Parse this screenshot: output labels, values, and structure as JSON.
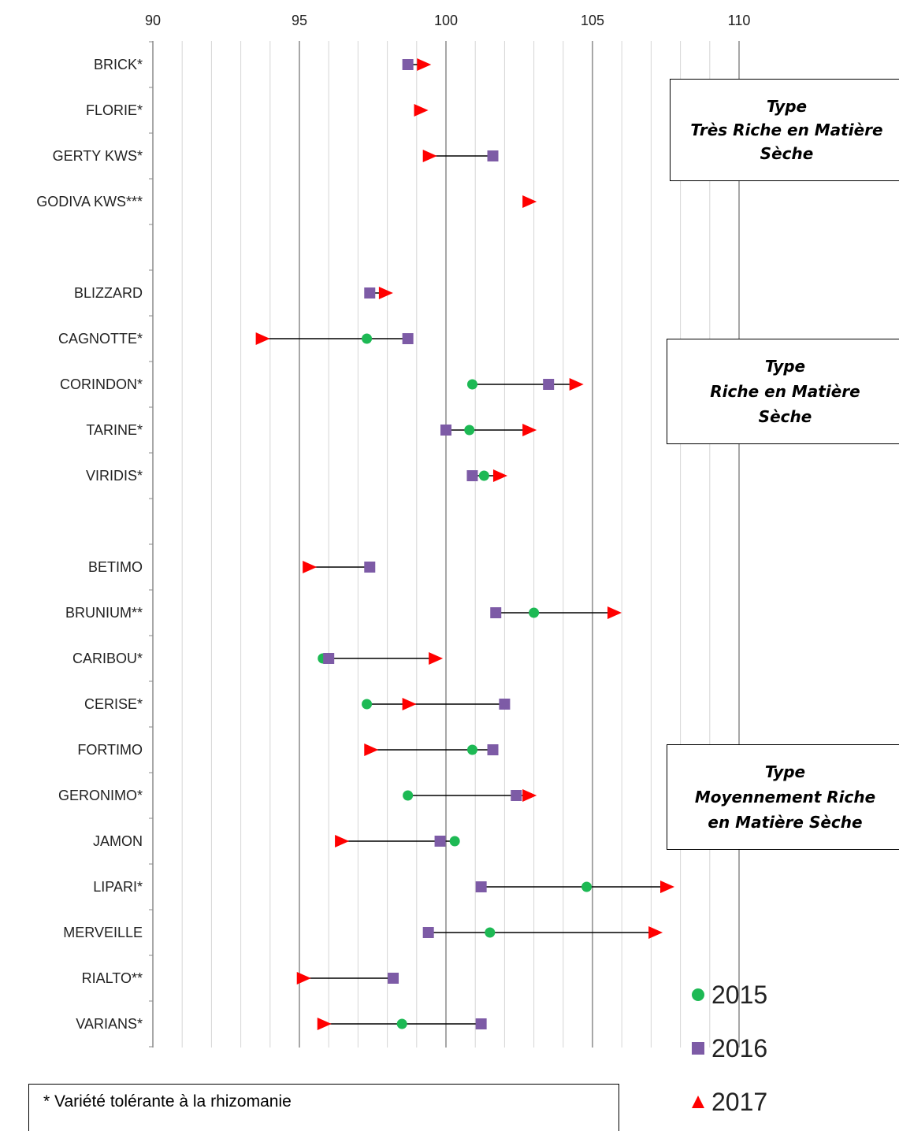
{
  "chart_data": {
    "type": "scatter",
    "xlim": [
      90,
      110
    ],
    "x_ticks": [
      90,
      95,
      100,
      105,
      110
    ],
    "grid": true,
    "legend_position": "bottom-right",
    "series_colors": {
      "2015": "#1db954",
      "2016": "#7d5ba6",
      "2017": "#ff0000"
    },
    "series_markers": {
      "2015": "circle",
      "2016": "square",
      "2017": "triangle"
    },
    "legend": [
      "2015",
      "2016",
      "2017"
    ],
    "categories": [
      {
        "name": "BRICK*",
        "v2015": null,
        "v2016": 98.7,
        "v2017": 99.2
      },
      {
        "name": "FLORIE*",
        "v2015": null,
        "v2016": null,
        "v2017": 99.1
      },
      {
        "name": "GERTY KWS*",
        "v2015": null,
        "v2016": 101.6,
        "v2017": 99.4
      },
      {
        "name": "GODIVA KWS***",
        "v2015": null,
        "v2016": null,
        "v2017": 102.8
      },
      {
        "name": "",
        "v2015": null,
        "v2016": null,
        "v2017": null
      },
      {
        "name": "BLIZZARD",
        "v2015": null,
        "v2016": 97.4,
        "v2017": 97.9
      },
      {
        "name": "CAGNOTTE*",
        "v2015": 97.3,
        "v2016": 98.7,
        "v2017": 93.7
      },
      {
        "name": "CORINDON*",
        "v2015": 100.9,
        "v2016": 103.5,
        "v2017": 104.4
      },
      {
        "name": "TARINE*",
        "v2015": 100.8,
        "v2016": 100.0,
        "v2017": 102.8
      },
      {
        "name": "VIRIDIS*",
        "v2015": 101.3,
        "v2016": 100.9,
        "v2017": 101.8
      },
      {
        "name": "",
        "v2015": null,
        "v2016": null,
        "v2017": null
      },
      {
        "name": "BETIMO",
        "v2015": null,
        "v2016": 97.4,
        "v2017": 95.3
      },
      {
        "name": "BRUNIUM**",
        "v2015": 103.0,
        "v2016": 101.7,
        "v2017": 105.7
      },
      {
        "name": "CARIBOU*",
        "v2015": 95.8,
        "v2016": 96.0,
        "v2017": 99.6
      },
      {
        "name": "CERISE*",
        "v2015": 97.3,
        "v2016": 102.0,
        "v2017": 98.7
      },
      {
        "name": "FORTIMO",
        "v2015": 100.9,
        "v2016": 101.6,
        "v2017": 97.4
      },
      {
        "name": "GERONIMO*",
        "v2015": 98.7,
        "v2016": 102.4,
        "v2017": 102.8
      },
      {
        "name": "JAMON",
        "v2015": 100.3,
        "v2016": 99.8,
        "v2017": 96.4
      },
      {
        "name": "LIPARI*",
        "v2015": 104.8,
        "v2016": 101.2,
        "v2017": 107.5
      },
      {
        "name": "MERVEILLE",
        "v2015": 101.5,
        "v2016": 99.4,
        "v2017": 107.1
      },
      {
        "name": "RIALTO**",
        "v2015": null,
        "v2016": 98.2,
        "v2017": 95.1
      },
      {
        "name": "VARIANS*",
        "v2015": 98.5,
        "v2016": 101.2,
        "v2017": 95.8
      }
    ]
  },
  "boxes": {
    "very_rich": [
      "Type",
      "Très Riche en Matière",
      "Sèche"
    ],
    "rich": [
      "Type",
      "Riche en Matière",
      "Sèche"
    ],
    "medium": [
      "Type",
      "Moyennement Riche",
      "en Matière Sèche"
    ]
  },
  "footnote": "* Variété tolérante à la rhizomanie"
}
